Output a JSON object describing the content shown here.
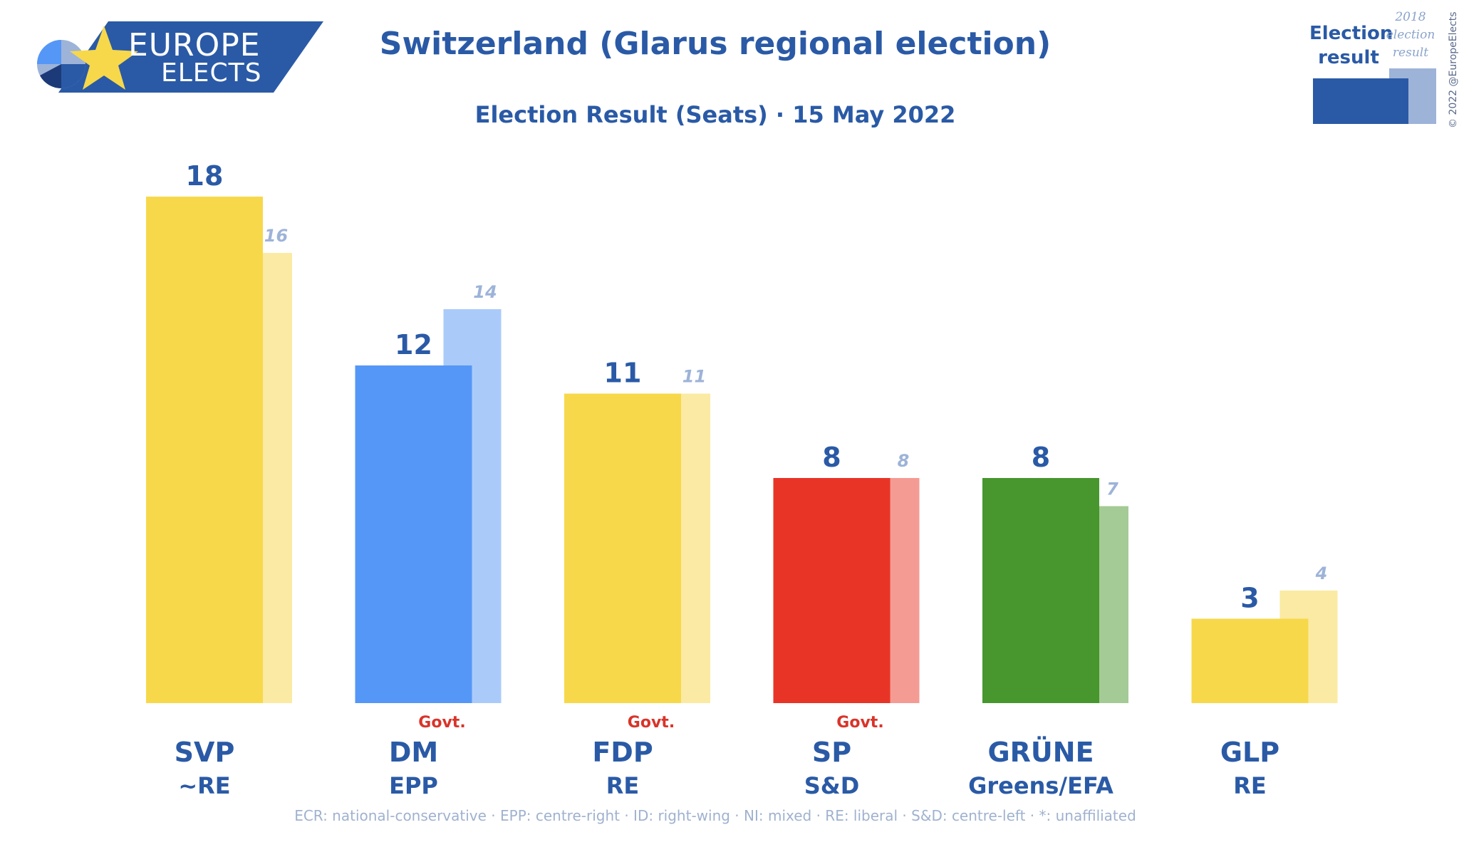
{
  "logo": {
    "line1": "EUROPE",
    "line2": "ELECTS"
  },
  "title": "Switzerland (Glarus regional election)",
  "subtitle": "Election Result (Seats) · 15 May 2022",
  "legend": {
    "current": "Election result",
    "previous": "2018 election result"
  },
  "copyright": "© 2022 @EuropeElects",
  "footnote": "ECR: national-conservative · EPP: centre-right · ID: right-wing · NI: mixed · RE: liberal · S&D: centre-left · *: unaffiliated",
  "chart_data": {
    "type": "bar",
    "categories": [
      "SVP",
      "DM",
      "FDP",
      "SP",
      "GRÜNE",
      "GLP"
    ],
    "groups": [
      "~RE",
      "EPP",
      "RE",
      "S&D",
      "Greens/EFA",
      "RE"
    ],
    "govt": [
      "",
      "Govt.",
      "Govt.",
      "Govt.",
      "",
      ""
    ],
    "govt_label": "Govt.",
    "series": [
      {
        "name": "Election result",
        "values": [
          18,
          12,
          11,
          8,
          8,
          3
        ]
      },
      {
        "name": "2018 election result",
        "values": [
          16,
          14,
          11,
          8,
          7,
          4
        ]
      }
    ],
    "colors": [
      "#f7d84b",
      "#5597f7",
      "#f7d84b",
      "#e83427",
      "#47972e",
      "#f7d84b"
    ],
    "prev_colors": [
      "#fbeaa3",
      "#aacbfa",
      "#fbeaa3",
      "#f49b93",
      "#a4ca95",
      "#fbeaa3"
    ],
    "value_color": "#2a5aa6",
    "prev_value_color": "#9db3d8",
    "govt_color": "#d9342a",
    "ylim": [
      0,
      18
    ]
  }
}
